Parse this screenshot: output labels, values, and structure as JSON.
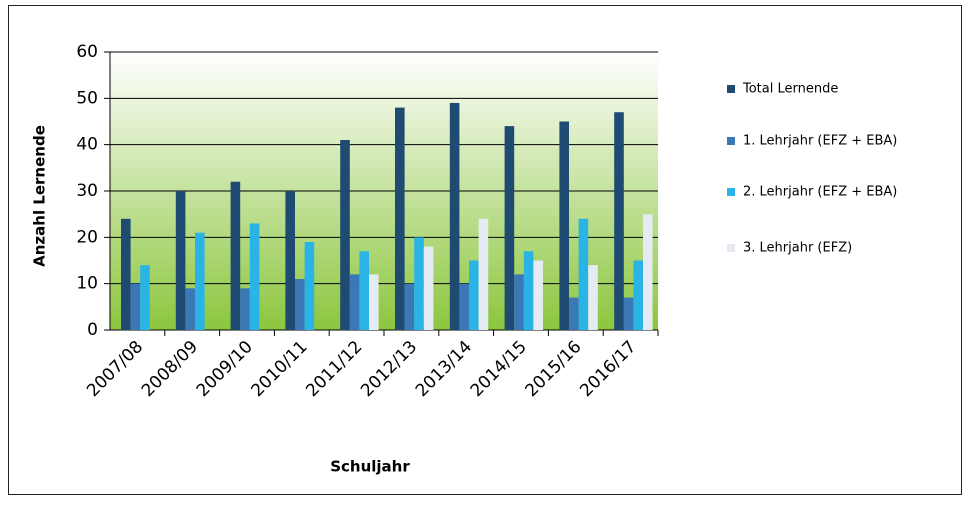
{
  "chart_data": {
    "type": "bar",
    "x_label": "Schuljahr",
    "y_label": "Anzahl Lernende",
    "categories": [
      "2007/08",
      "2008/09",
      "2009/10",
      "2010/11",
      "2011/12",
      "2012/13",
      "2013/14",
      "2014/15",
      "2015/16",
      "2016/17"
    ],
    "series": [
      {
        "name": "Total Lernende",
        "color": "#1f4a72",
        "values": [
          24,
          30,
          32,
          30,
          41,
          48,
          49,
          44,
          45,
          47
        ]
      },
      {
        "name": "1. Lehrjahr (EFZ + EBA)",
        "color": "#3b78b5",
        "values": [
          10,
          9,
          9,
          11,
          12,
          10,
          10,
          12,
          7,
          7
        ]
      },
      {
        "name": "2. Lehrjahr (EFZ + EBA)",
        "color": "#2ab4e6",
        "values": [
          14,
          21,
          23,
          19,
          17,
          20,
          15,
          17,
          24,
          15
        ]
      },
      {
        "name": "3. Lehrjahr (EFZ)",
        "color": "#e4ebf2",
        "values": [
          null,
          null,
          null,
          null,
          12,
          18,
          24,
          15,
          14,
          25
        ]
      }
    ],
    "ylim": [
      0,
      60
    ],
    "yticks": [
      0,
      10,
      20,
      30,
      40,
      50,
      60
    ],
    "grid": true,
    "legend": "right"
  }
}
